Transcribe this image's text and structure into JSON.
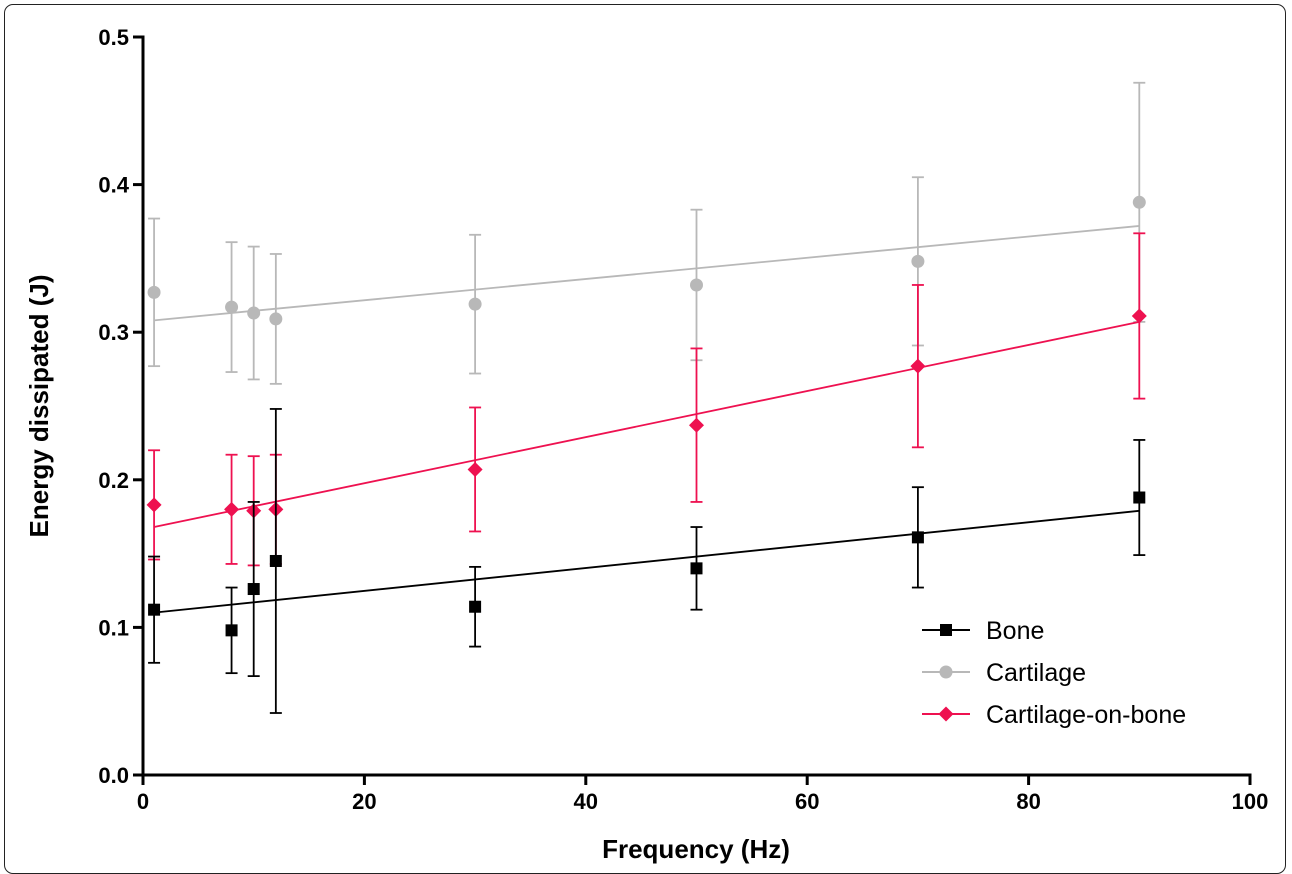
{
  "chart_data": {
    "type": "scatter",
    "xlabel": "Frequency (Hz)",
    "ylabel": "Energy dissipated (J)",
    "xlim": [
      0,
      100
    ],
    "ylim": [
      0,
      0.5
    ],
    "xticks": [
      0,
      20,
      40,
      60,
      80,
      100
    ],
    "yticks": [
      0.0,
      0.1,
      0.2,
      0.3,
      0.4,
      0.5
    ],
    "xtick_labels": [
      "0",
      "20",
      "40",
      "60",
      "80",
      "100"
    ],
    "ytick_labels": [
      "0.0",
      "0.1",
      "0.2",
      "0.3",
      "0.4",
      "0.5"
    ],
    "grid": false,
    "legend_position": "bottom-right",
    "x": [
      1,
      8,
      10,
      12,
      30,
      50,
      70,
      90
    ],
    "series": [
      {
        "name": "Bone",
        "marker": "square",
        "color": "#000000",
        "values": [
          0.112,
          0.098,
          0.126,
          0.145,
          0.114,
          0.14,
          0.161,
          0.188
        ],
        "error": [
          0.036,
          0.029,
          0.059,
          0.103,
          0.027,
          0.028,
          0.034,
          0.039
        ],
        "fit": {
          "x": [
            1,
            90
          ],
          "y": [
            0.11,
            0.179
          ]
        }
      },
      {
        "name": "Cartilage",
        "marker": "circle",
        "color": "#b8b8b8",
        "values": [
          0.327,
          0.317,
          0.313,
          0.309,
          0.319,
          0.332,
          0.348,
          0.388
        ],
        "error": [
          0.05,
          0.044,
          0.045,
          0.044,
          0.047,
          0.051,
          0.057,
          0.081
        ],
        "fit": {
          "x": [
            1,
            90
          ],
          "y": [
            0.308,
            0.372
          ]
        }
      },
      {
        "name": "Cartilage-on-bone",
        "marker": "diamond",
        "color": "#ee1150",
        "values": [
          0.183,
          0.18,
          0.179,
          0.18,
          0.207,
          0.237,
          0.277,
          0.311
        ],
        "error": [
          0.037,
          0.037,
          0.037,
          0.037,
          0.042,
          0.052,
          0.055,
          0.056
        ],
        "fit": {
          "x": [
            1,
            90
          ],
          "y": [
            0.168,
            0.307
          ]
        }
      }
    ]
  }
}
